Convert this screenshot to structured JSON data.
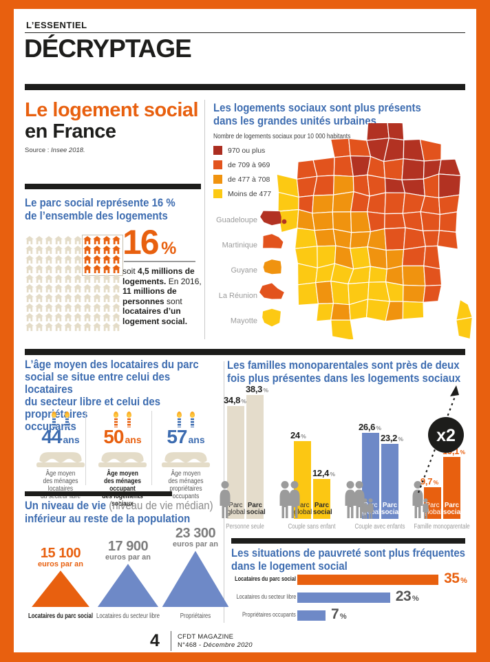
{
  "frame": {
    "color": "#e8600f"
  },
  "header": {
    "kicker": "L’ESSENTIEL",
    "title": "DÉCRYPTAGE"
  },
  "intro": {
    "title_accent": "Le logement social",
    "title_rest": "en France",
    "source_segments": [
      {
        "t": "Source : "
      },
      {
        "t": "Insee 2018.",
        "i": true
      }
    ]
  },
  "parc": {
    "heading_l1": "Le parc social représente 16 %",
    "heading_l2": "de l’ensemble des logements",
    "big": "16",
    "pct": "%",
    "segments": [
      {
        "t": "soit "
      },
      {
        "t": "4,5 millions de logements.",
        "b": true
      },
      {
        "t": " En 2016, "
      },
      {
        "t": "11 millions de personnes",
        "b": true
      },
      {
        "t": " sont "
      },
      {
        "t": "locataires d’un logement social.",
        "b": true
      }
    ]
  },
  "map_heading": {
    "l1": "Les logements sociaux sont plus présents",
    "l2": "dans les grandes unités urbaines"
  },
  "ages": {
    "heading_lines": [
      "L’âge moyen des locataires du parc",
      "social se situe entre celui des locataires",
      "du secteur libre et celui des propriétaires",
      "occupants"
    ],
    "items": [
      {
        "value": "44",
        "unit": "ans",
        "color": "#3d6cb0",
        "bold": false,
        "lines": [
          "Âge moyen",
          "des ménages locataires",
          "du secteur libre"
        ]
      },
      {
        "value": "50",
        "unit": "ans",
        "color": "#e8600f",
        "bold": true,
        "lines": [
          "Âge moyen",
          "des ménages occupant",
          "des logements sociaux"
        ]
      },
      {
        "value": "57",
        "unit": "ans",
        "color": "#3d6cb0",
        "bold": false,
        "lines": [
          "Âge moyen",
          "des ménages",
          "propriétaires occupants"
        ]
      }
    ]
  },
  "families_heading": {
    "l1": "Les familles monoparentales sont près de deux",
    "l2": "fois plus présentes dans les logements sociaux"
  },
  "income_heading": {
    "l1a": "Un niveau de vie ",
    "l1b": "(niveau de vie médian)",
    "l2": "inférieur au reste de la population"
  },
  "poverty_heading": {
    "l1": "Les situations de pauvreté sont plus fréquentes",
    "l2": "dans le logement social"
  },
  "footer": {
    "page_number": "4",
    "magazine": "CFDT MAGAZINE",
    "issue": "N°468 - ",
    "date": "Décembre 2020"
  },
  "chart_data": [
    {
      "type": "bar",
      "title": "Les familles monoparentales sont près de deux fois plus présentes dans les logements sociaux",
      "categories": [
        "Personne seule",
        "Couple sans enfant",
        "Couple avec enfants",
        "Famille monoparentale"
      ],
      "series": [
        {
          "name": "Parc global",
          "values": [
            34.8,
            24,
            26.6,
            9.7
          ],
          "displays": [
            "34,8",
            "24",
            "26,6",
            "9,7"
          ]
        },
        {
          "name": "Parc social",
          "values": [
            38.3,
            12.4,
            23.2,
            19.1
          ],
          "displays": [
            "38,3",
            "12,4",
            "23,2",
            "19,1"
          ]
        }
      ],
      "bar_label_lines": {
        "global": [
          "Parc",
          "global"
        ],
        "social": [
          "Parc",
          "social"
        ]
      },
      "group_colors": [
        "#e4dccb",
        "#fcc713",
        "#6e89c7",
        "#e8600f"
      ],
      "value_label_colors": [
        "#1d1d1b",
        "#1d1d1b",
        "#1d1d1b",
        "#e8600f"
      ],
      "bar_text_colors": [
        "#2b2b2b",
        "#2b2b2b",
        "#ffffff",
        "#ffffff"
      ],
      "annotation": "x2",
      "unit": "%",
      "ylim": [
        0,
        40
      ]
    },
    {
      "type": "bar",
      "orientation": "horizontal",
      "title": "Les situations de pauvreté sont plus fréquentes dans le logement social",
      "categories": [
        "Locataires du parc social",
        "Locataires du secteur libre",
        "Propriétaires occupants"
      ],
      "values": [
        35,
        23,
        7
      ],
      "displays": [
        "35",
        "23",
        "7"
      ],
      "bar_colors": [
        "#e8600f",
        "#6e89c7",
        "#6e89c7"
      ],
      "value_colors": [
        "#e8600f",
        "#555555",
        "#555555"
      ],
      "label_bold": [
        true,
        false,
        false
      ],
      "unit": "%"
    },
    {
      "type": "pictogram-triangle",
      "title": "Un niveau de vie (niveau de vie médian) inférieur au reste de la population",
      "items": [
        {
          "label": "Locataires du parc social",
          "value": 15100,
          "display": "15 100",
          "unit": "euros par an",
          "color": "#e8600f",
          "text_color": "#e8600f",
          "label_bold": true
        },
        {
          "label": "Locataires du secteur libre",
          "value": 17900,
          "display": "17 900",
          "unit": "euros par an",
          "color": "#6e89c7",
          "text_color": "#7d7d7d",
          "label_bold": false
        },
        {
          "label": "Propriétaires",
          "value": 23300,
          "display": "23 300",
          "unit": "euros par an",
          "color": "#6e89c7",
          "text_color": "#7d7d7d",
          "label_bold": false
        }
      ]
    },
    {
      "type": "pictogram",
      "title": "Le parc social représente 16 % de l’ensemble des logements",
      "total": 100,
      "highlighted": 16,
      "value_display": "16",
      "unit": "%"
    },
    {
      "type": "choropleth",
      "legend_title": "Nombre de logements sociaux pour 10 000 habitants",
      "legend": [
        {
          "label": "970 ou plus",
          "color": "#ab2d20"
        },
        {
          "label": "de 709 à 969",
          "color": "#e2531d"
        },
        {
          "label": "de 477 à 708",
          "color": "#f0930f"
        },
        {
          "label": "Moins de 477",
          "color": "#fcc913"
        }
      ],
      "palette": {
        "D": "#b23222",
        "O": "#e2531d",
        "A": "#f0930f",
        "Y": "#fcc913"
      },
      "matrix": [
        ".....DD....",
        "...OODDDO..",
        ".OOODOODDD.",
        "YOOAOODDOD.",
        "YOAAOOOOOO.",
        "YAAAAOOOOO.",
        ".YAAAAOOOO.",
        ".YYAYAAOO..",
        ".YYYYYAAO..",
        ".YAYYYYAO..",
        "..YAYYAY..Y",
        "...Y......Y"
      ],
      "territories": [
        {
          "name": "Guadeloupe",
          "color": "#b23222"
        },
        {
          "name": "Martinique",
          "color": "#e2531d"
        },
        {
          "name": "Guyane",
          "color": "#f0930f"
        },
        {
          "name": "La Réunion",
          "color": "#e2531d"
        },
        {
          "name": "Mayotte",
          "color": "#fcc913"
        }
      ]
    }
  ]
}
